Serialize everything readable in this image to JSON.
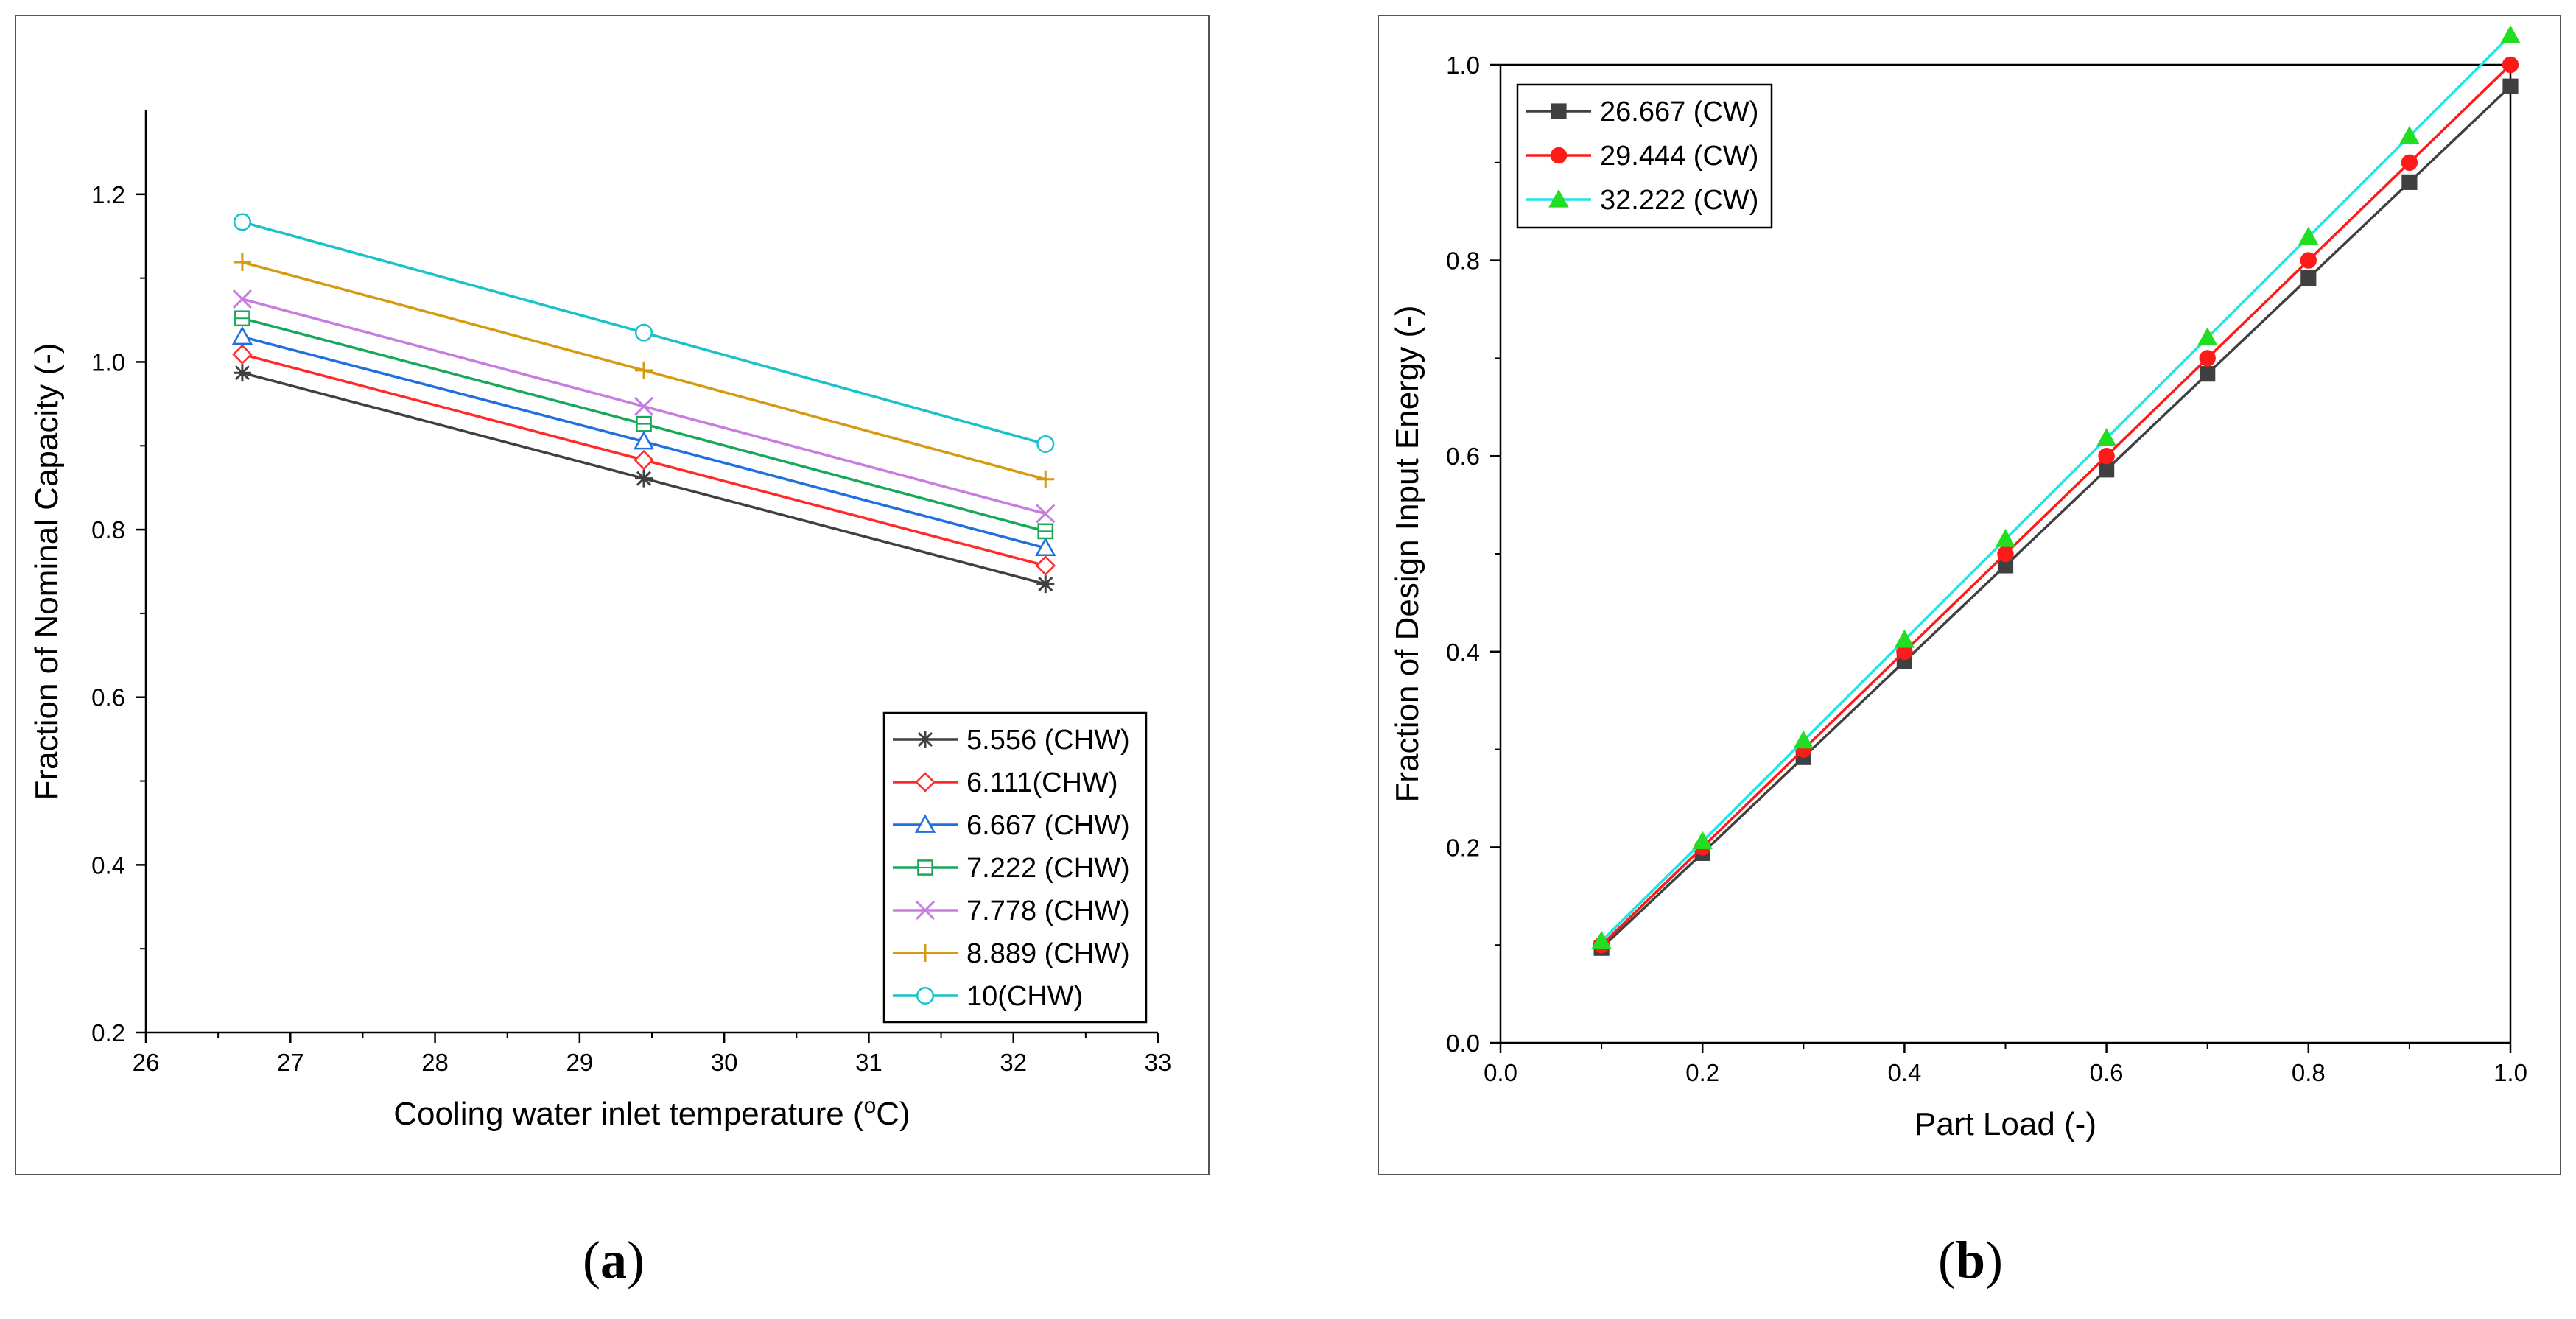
{
  "chart_data": [
    {
      "id": "a",
      "type": "line",
      "xlabel": "Cooling water inlet temperature (",
      "xlabel_sup": "o",
      "xlabel_end": "C)",
      "ylabel": "Fraction of Nominal Capacity (-)",
      "xlim": [
        26,
        33
      ],
      "ylim": [
        0.2,
        1.3
      ],
      "xticks": [
        "26",
        "27",
        "28",
        "29",
        "30",
        "31",
        "32",
        "33"
      ],
      "yticks": [
        "0.2",
        "0.4",
        "0.6",
        "0.8",
        "1.0",
        "1.2"
      ],
      "x": [
        26.667,
        29.444,
        32.222
      ],
      "series": [
        {
          "name": "5.556 (CHW)",
          "color": "#404040",
          "marker": "asterisk",
          "values": [
            0.987,
            0.861,
            0.735
          ]
        },
        {
          "name": "6.111(CHW)",
          "color": "#ff2a2a",
          "marker": "diamond",
          "values": [
            1.009,
            0.883,
            0.757
          ]
        },
        {
          "name": "6.667 (CHW)",
          "color": "#1f6fe0",
          "marker": "triangle",
          "values": [
            1.03,
            0.905,
            0.778
          ]
        },
        {
          "name": "7.222 (CHW)",
          "color": "#18a858",
          "marker": "square",
          "values": [
            1.052,
            0.926,
            0.798
          ]
        },
        {
          "name": "7.778 (CHW)",
          "color": "#c77ce0",
          "marker": "x",
          "values": [
            1.075,
            0.947,
            0.819
          ]
        },
        {
          "name": "8.889 (CHW)",
          "color": "#d59a10",
          "marker": "plus",
          "values": [
            1.119,
            0.99,
            0.86
          ]
        },
        {
          "name": "10(CHW)",
          "color": "#18c2c8",
          "marker": "circle",
          "values": [
            1.167,
            1.035,
            0.902
          ]
        }
      ],
      "legend_position": "bottom-right"
    },
    {
      "id": "b",
      "type": "line",
      "xlabel": "Part Load (-)",
      "ylabel": "Fraction of Design Input Energy (-)",
      "xlim": [
        0.0,
        1.0
      ],
      "ylim": [
        0.0,
        1.0
      ],
      "xticks": [
        "0.0",
        "0.2",
        "0.4",
        "0.6",
        "0.8",
        "1.0"
      ],
      "yticks": [
        "0.0",
        "0.2",
        "0.4",
        "0.6",
        "0.8",
        "1.0"
      ],
      "x": [
        0.1,
        0.2,
        0.3,
        0.4,
        0.5,
        0.6,
        0.7,
        0.8,
        0.9,
        1.0
      ],
      "series": [
        {
          "name": "26.667 (CW)",
          "color": "#404040",
          "marker": "filled-square",
          "values": [
            0.097,
            0.194,
            0.292,
            0.39,
            0.488,
            0.586,
            0.684,
            0.782,
            0.88,
            0.978
          ]
        },
        {
          "name": "29.444 (CW)",
          "color": "#ff1a1a",
          "marker": "filled-circle",
          "values": [
            0.1,
            0.2,
            0.3,
            0.4,
            0.5,
            0.6,
            0.7,
            0.8,
            0.9,
            1.0
          ]
        },
        {
          "name": "32.222 (CW)",
          "color": "#1ee6e6",
          "marker": "filled-triangle",
          "values": [
            0.104,
            0.206,
            0.309,
            0.412,
            0.515,
            0.618,
            0.721,
            0.824,
            0.927,
            1.03
          ]
        }
      ],
      "legend_position": "top-left"
    }
  ],
  "captions": {
    "a": "a",
    "b": "b"
  },
  "caption_parens": {
    "open": "(",
    "close": ")"
  },
  "colors": {
    "axis": "#000000",
    "frame": "#555555",
    "triangle_fill_b": "#22dd22",
    "marker_fill_b_red": "#ff1a1a"
  }
}
